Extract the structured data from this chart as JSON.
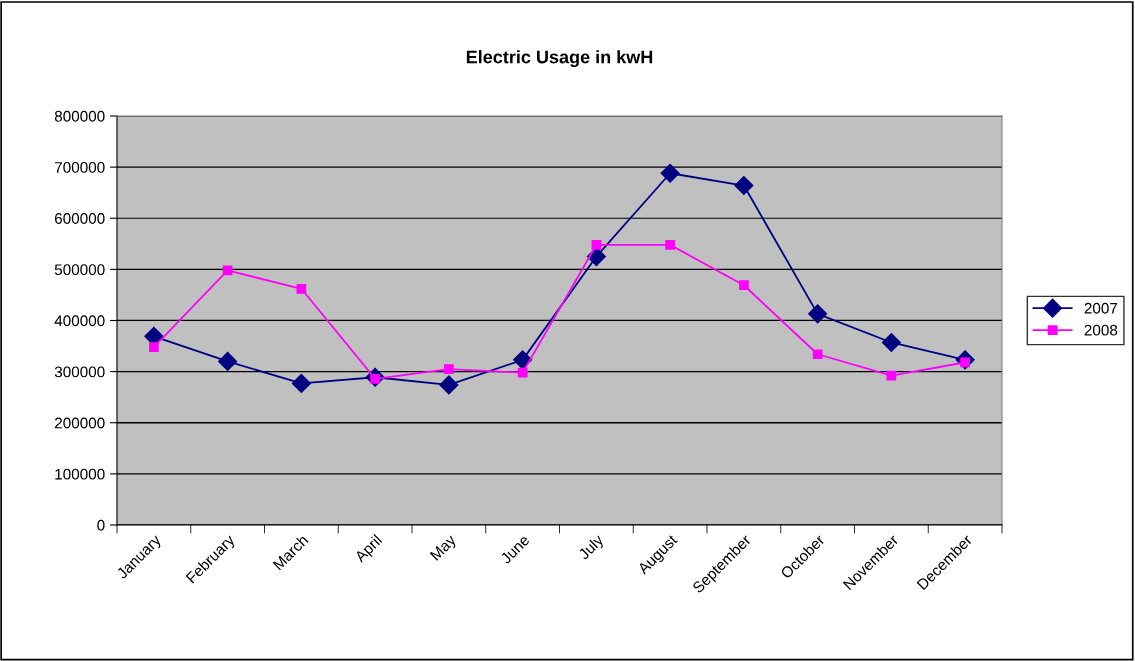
{
  "chart_data": {
    "type": "line",
    "title": "Electric Usage in kwH",
    "categories": [
      "January",
      "February",
      "March",
      "April",
      "May",
      "June",
      "July",
      "August",
      "September",
      "October",
      "November",
      "December"
    ],
    "series": [
      {
        "name": "2007",
        "color": "#000080",
        "marker": "diamond",
        "values": [
          369000,
          320000,
          277000,
          289000,
          274000,
          323000,
          525000,
          688000,
          664000,
          413000,
          357000,
          323000
        ]
      },
      {
        "name": "2008",
        "color": "#ff00ff",
        "marker": "square",
        "values": [
          348000,
          498000,
          462000,
          286000,
          305000,
          298000,
          548000,
          548000,
          469000,
          334000,
          292000,
          318000
        ]
      }
    ],
    "ylim": [
      0,
      800000
    ],
    "yticks": [
      0,
      100000,
      200000,
      300000,
      400000,
      500000,
      600000,
      700000,
      800000
    ],
    "grid": "y",
    "legend": "right",
    "line_style": "solid"
  }
}
